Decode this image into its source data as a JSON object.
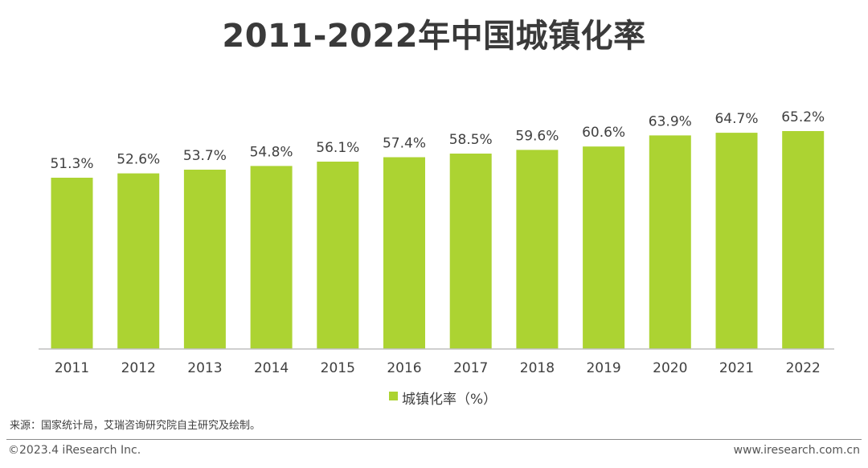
{
  "chart_data": {
    "type": "bar",
    "title": "2011-2022年中国城镇化率",
    "categories": [
      "2011",
      "2012",
      "2013",
      "2014",
      "2015",
      "2016",
      "2017",
      "2018",
      "2019",
      "2020",
      "2021",
      "2022"
    ],
    "series": [
      {
        "name": "城镇化率（%）",
        "values": [
          51.3,
          52.6,
          53.7,
          54.8,
          56.1,
          57.4,
          58.5,
          59.6,
          60.6,
          63.9,
          64.7,
          65.2
        ]
      }
    ],
    "data_labels": [
      "51.3%",
      "52.6%",
      "53.7%",
      "54.8%",
      "56.1%",
      "57.4%",
      "58.5%",
      "59.6%",
      "60.6%",
      "63.9%",
      "64.7%",
      "65.2%"
    ],
    "legend_position": "bottom-center",
    "grid": false,
    "colors": {
      "bar": "#acd332",
      "axis": "#bfbfbf",
      "text": "#404040"
    }
  },
  "footer": {
    "source": "来源：国家统计局，艾瑞咨询研究院自主研究及绘制。",
    "copyright": "©2023.4 iResearch Inc.",
    "url": "www.iresearch.com.cn"
  }
}
